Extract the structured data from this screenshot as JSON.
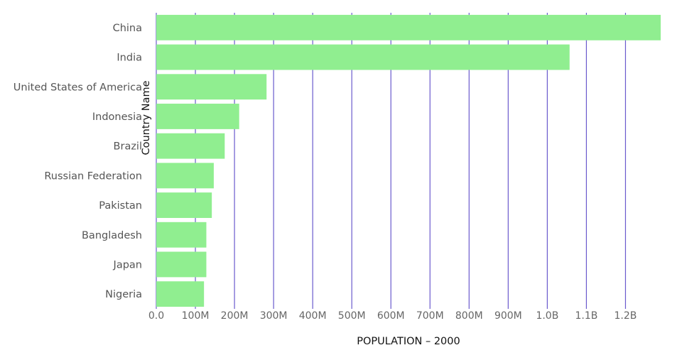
{
  "chart_data": {
    "type": "bar",
    "orientation": "horizontal",
    "categories": [
      "China",
      "India",
      "United States of America",
      "Indonesia",
      "Brazil",
      "Russian Federation",
      "Pakistan",
      "Bangladesh",
      "Japan",
      "Nigeria"
    ],
    "values": [
      1290000000,
      1057000000,
      282000000,
      212000000,
      175000000,
      147000000,
      142000000,
      128000000,
      128000000,
      122000000
    ],
    "xlabel": "POPULATION – 2000",
    "ylabel": "Country Name",
    "xlim": [
      0,
      1290000000
    ],
    "x_ticks": [
      0,
      100000000,
      200000000,
      300000000,
      400000000,
      500000000,
      600000000,
      700000000,
      800000000,
      900000000,
      1000000000,
      1100000000,
      1200000000
    ],
    "x_tick_labels": [
      "0.0",
      "100M",
      "200M",
      "300M",
      "400M",
      "500M",
      "600M",
      "700M",
      "800M",
      "900M",
      "1.0B",
      "1.1B",
      "1.2B"
    ],
    "bar_color": "#90ee90",
    "grid_color": "#6a5acd",
    "grid": true
  }
}
